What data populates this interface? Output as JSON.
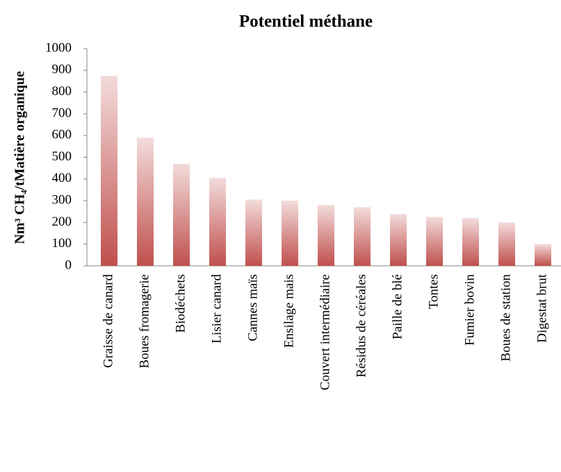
{
  "chart_data": {
    "type": "bar",
    "title": "Potentiel méthane",
    "y_label": "Nm³ CH₄/tMatière organique",
    "categories": [
      "Graisse de canard",
      "Boues fromagerie",
      "Biodéchets",
      "Lisier canard",
      "Cannes maïs",
      "Ensilage mais",
      "Couvert intermédiaire",
      "Résidus de céréales",
      "Paille de blé",
      "Tontes",
      "Fumier bovin",
      "Boues de station",
      "Digestat brut"
    ],
    "values": [
      875,
      590,
      470,
      405,
      305,
      300,
      280,
      270,
      238,
      225,
      220,
      200,
      100
    ],
    "color": "#c0504d",
    "ylim": [
      0,
      1000
    ],
    "yticks": [
      0,
      100,
      200,
      300,
      400,
      500,
      600,
      700,
      800,
      900,
      1000
    ],
    "grid": false
  }
}
